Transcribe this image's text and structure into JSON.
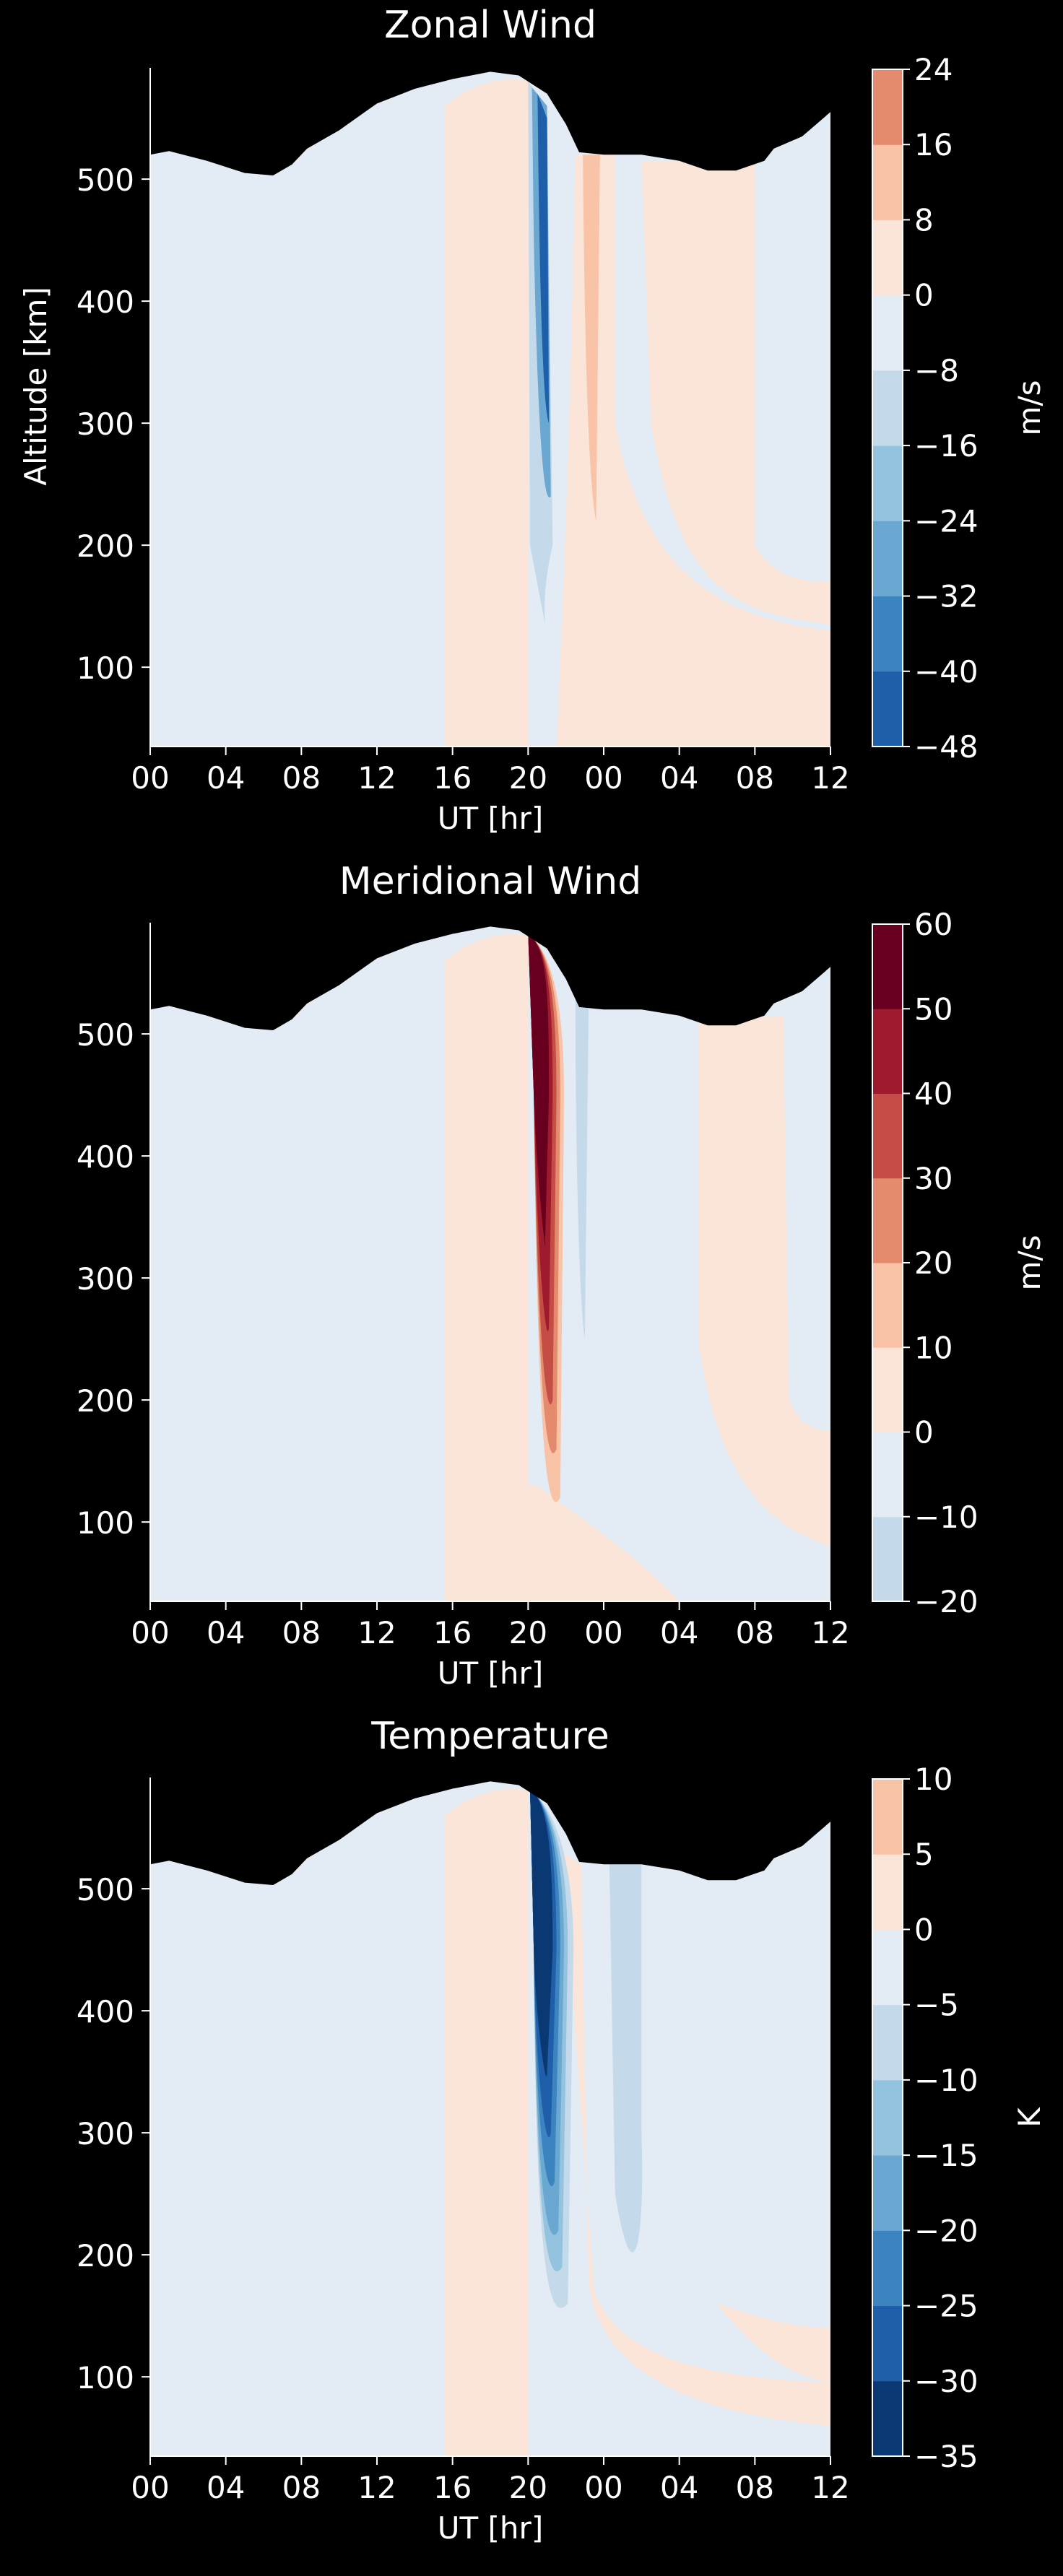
{
  "chart_data": [
    {
      "type": "heatmap",
      "subtype": "filled-contour",
      "title": "Zonal Wind",
      "xlabel": "UT [hr]",
      "ylabel": "Altitude [km]",
      "x_tick_labels": [
        "00",
        "04",
        "08",
        "12",
        "16",
        "20",
        "00",
        "04",
        "08",
        "12"
      ],
      "x_tick_hours": [
        0,
        4,
        8,
        12,
        16,
        20,
        24,
        28,
        32,
        36
      ],
      "xlim_hours": [
        0,
        36
      ],
      "y_ticks": [
        100,
        200,
        300,
        400,
        500
      ],
      "ylim": [
        35,
        590
      ],
      "colorbar": {
        "label": "m/s",
        "levels": [
          -48,
          -40,
          -32,
          -24,
          -16,
          -8,
          0,
          8,
          16,
          24
        ],
        "tick_labels": [
          "24",
          "16",
          "8",
          "0",
          "−8",
          "−16",
          "−24",
          "−32",
          "−40",
          "−48"
        ],
        "colormap": "RdBu_r"
      },
      "features": [
        {
          "description": "strong westward jet near 21-22 UT",
          "min_value": -48,
          "altitude_range": [
            190,
            580
          ]
        },
        {
          "description": "eastward band 16-20 UT",
          "level_range": [
            0,
            8
          ]
        },
        {
          "description": "eastward band 23-24 UT",
          "level_range": [
            8,
            16
          ]
        }
      ]
    },
    {
      "type": "heatmap",
      "subtype": "filled-contour",
      "title": "Meridional Wind",
      "xlabel": "UT [hr]",
      "ylabel": "",
      "x_tick_labels": [
        "00",
        "04",
        "08",
        "12",
        "16",
        "20",
        "00",
        "04",
        "08",
        "12"
      ],
      "x_tick_hours": [
        0,
        4,
        8,
        12,
        16,
        20,
        24,
        28,
        32,
        36
      ],
      "xlim_hours": [
        0,
        36
      ],
      "y_ticks": [
        100,
        200,
        300,
        400,
        500
      ],
      "ylim": [
        35,
        590
      ],
      "colorbar": {
        "label": "m/s",
        "levels": [
          -20,
          -10,
          0,
          10,
          20,
          30,
          40,
          50,
          60
        ],
        "tick_labels": [
          "60",
          "50",
          "40",
          "30",
          "20",
          "10",
          "0",
          "−10",
          "−20"
        ],
        "colormap": "RdBu_r"
      },
      "features": [
        {
          "description": "strong poleward surge near 21 UT",
          "max_value": 60,
          "altitude_range": [
            200,
            580
          ]
        },
        {
          "description": "weak negative band 22-23 UT",
          "level_range": [
            -20,
            -10
          ]
        }
      ]
    },
    {
      "type": "heatmap",
      "subtype": "filled-contour",
      "title": "Temperature",
      "xlabel": "UT [hr]",
      "ylabel": "",
      "x_tick_labels": [
        "00",
        "04",
        "08",
        "12",
        "16",
        "20",
        "00",
        "04",
        "08",
        "12"
      ],
      "x_tick_hours": [
        0,
        4,
        8,
        12,
        16,
        20,
        24,
        28,
        32,
        36
      ],
      "xlim_hours": [
        0,
        36
      ],
      "y_ticks": [
        100,
        200,
        300,
        400,
        500
      ],
      "ylim": [
        35,
        590
      ],
      "colorbar": {
        "label": "K",
        "levels": [
          -35,
          -30,
          -25,
          -20,
          -15,
          -10,
          -5,
          0,
          5,
          10
        ],
        "tick_labels": [
          "10",
          "5",
          "0",
          "−5",
          "−10",
          "−15",
          "−20",
          "−25",
          "−30",
          "−35"
        ],
        "colormap": "RdBu_r"
      },
      "features": [
        {
          "description": "strong cooling near 21-22 UT",
          "min_value": -35,
          "altitude_range": [
            170,
            580
          ]
        },
        {
          "description": "warm band 16-20 UT",
          "level_range": [
            0,
            5
          ]
        }
      ]
    }
  ],
  "colors": {
    "background": "#000000",
    "foreground": "#ffffff",
    "palette_warm": [
      "#fbe5d8",
      "#f8c3a7",
      "#e48b6e",
      "#c44e45",
      "#9e1a2c",
      "#67001f"
    ],
    "palette_cool": [
      "#e3ecf4",
      "#c4daea",
      "#94c3df",
      "#6aa8d2",
      "#3c84bf",
      "#1f5ea8",
      "#0a3872"
    ]
  }
}
